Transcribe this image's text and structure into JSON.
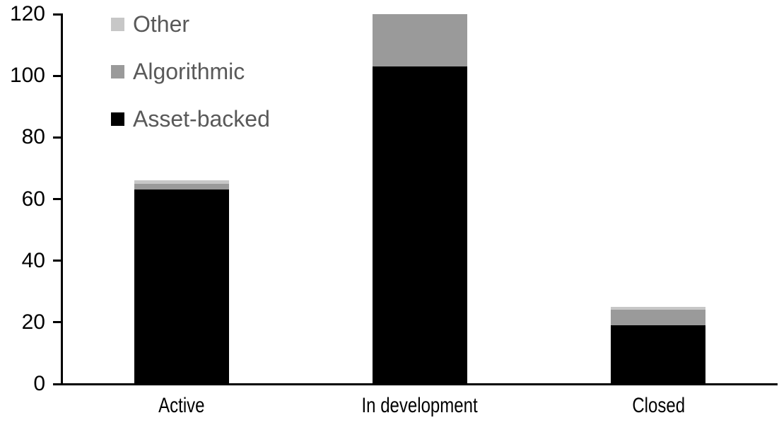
{
  "chart_data": {
    "type": "bar",
    "stacked": true,
    "title": "",
    "xlabel": "",
    "ylabel": "",
    "grid": false,
    "categories": [
      "Active",
      "In development",
      "Closed"
    ],
    "series": [
      {
        "name": "Asset-backed",
        "color": "#000000",
        "values": [
          63,
          103,
          19
        ]
      },
      {
        "name": "Algorithmic",
        "color": "#9a9a9a",
        "values": [
          2,
          17,
          5
        ]
      },
      {
        "name": "Other",
        "color": "#c7c7c7",
        "values": [
          1,
          0,
          1
        ]
      }
    ],
    "totals": [
      66,
      120,
      25
    ],
    "yticks": [
      "0",
      "20",
      "40",
      "60",
      "80",
      "100",
      "120"
    ],
    "ylim": [
      0,
      120
    ],
    "legend": {
      "position": "top-left",
      "order": [
        "Other",
        "Algorithmic",
        "Asset-backed"
      ]
    },
    "colors": {
      "axis_line": "#000000",
      "axis_text": "#000000",
      "legend_text": "#595959",
      "background": "#ffffff"
    }
  }
}
